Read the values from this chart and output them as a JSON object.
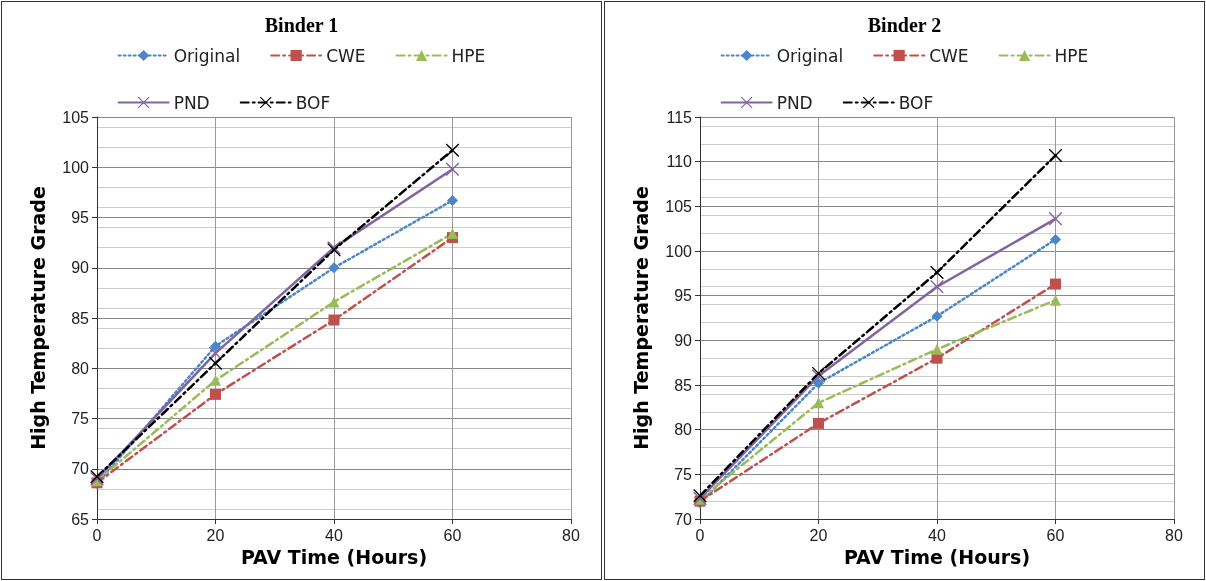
{
  "chart_data": [
    {
      "type": "line",
      "title": "Binder 1",
      "xlabel": "PAV Time (Hours)",
      "ylabel": "High Temperature Grade",
      "x": [
        0,
        20,
        40,
        60
      ],
      "xlim": [
        0,
        80
      ],
      "xticks": [
        0,
        20,
        40,
        60,
        80
      ],
      "ylim": [
        65,
        105
      ],
      "yticks": [
        65,
        70,
        75,
        80,
        85,
        90,
        95,
        100,
        105
      ],
      "grid": true,
      "legend": "top",
      "series": [
        {
          "name": "Original",
          "color": "#4a86c8",
          "marker": "diamond",
          "line_style": "dotted",
          "values": [
            68.5,
            82.2,
            90.0,
            96.7
          ]
        },
        {
          "name": "CWE",
          "color": "#c0504d",
          "marker": "square",
          "line_style": "dashed",
          "values": [
            68.6,
            77.4,
            84.8,
            93.0
          ]
        },
        {
          "name": "HPE",
          "color": "#9bbb59",
          "marker": "triangle",
          "line_style": "dashed",
          "values": [
            68.8,
            78.8,
            86.6,
            93.4
          ]
        },
        {
          "name": "PND",
          "color": "#8064a2",
          "marker": "cross",
          "line_style": "solid",
          "values": [
            69.0,
            81.5,
            92.0,
            99.8
          ]
        },
        {
          "name": "BOF",
          "color": "#000000",
          "marker": "cross",
          "line_style": "dashed",
          "values": [
            69.2,
            80.5,
            91.8,
            101.7
          ]
        }
      ]
    },
    {
      "type": "line",
      "title": "Binder 2",
      "xlabel": "PAV Time (Hours)",
      "ylabel": "High Temperature Grade",
      "x": [
        0,
        20,
        40,
        60
      ],
      "xlim": [
        0,
        80
      ],
      "xticks": [
        0,
        20,
        40,
        60,
        80
      ],
      "ylim": [
        70,
        115
      ],
      "yticks": [
        70,
        75,
        80,
        85,
        90,
        95,
        100,
        105,
        110,
        115
      ],
      "grid": true,
      "legend": "top",
      "series": [
        {
          "name": "Original",
          "color": "#4a86c8",
          "marker": "diamond",
          "line_style": "dotted",
          "values": [
            71.8,
            85.2,
            92.7,
            101.3
          ]
        },
        {
          "name": "CWE",
          "color": "#c0504d",
          "marker": "square",
          "line_style": "dashed",
          "values": [
            72.0,
            80.7,
            88.0,
            96.3
          ]
        },
        {
          "name": "HPE",
          "color": "#9bbb59",
          "marker": "triangle",
          "line_style": "dashed",
          "values": [
            72.2,
            83.0,
            89.0,
            94.5
          ]
        },
        {
          "name": "PND",
          "color": "#8064a2",
          "marker": "cross",
          "line_style": "solid",
          "values": [
            72.3,
            86.0,
            96.0,
            103.6
          ]
        },
        {
          "name": "BOF",
          "color": "#000000",
          "marker": "cross",
          "line_style": "dashed",
          "values": [
            72.6,
            86.3,
            97.6,
            110.7
          ]
        }
      ]
    }
  ]
}
